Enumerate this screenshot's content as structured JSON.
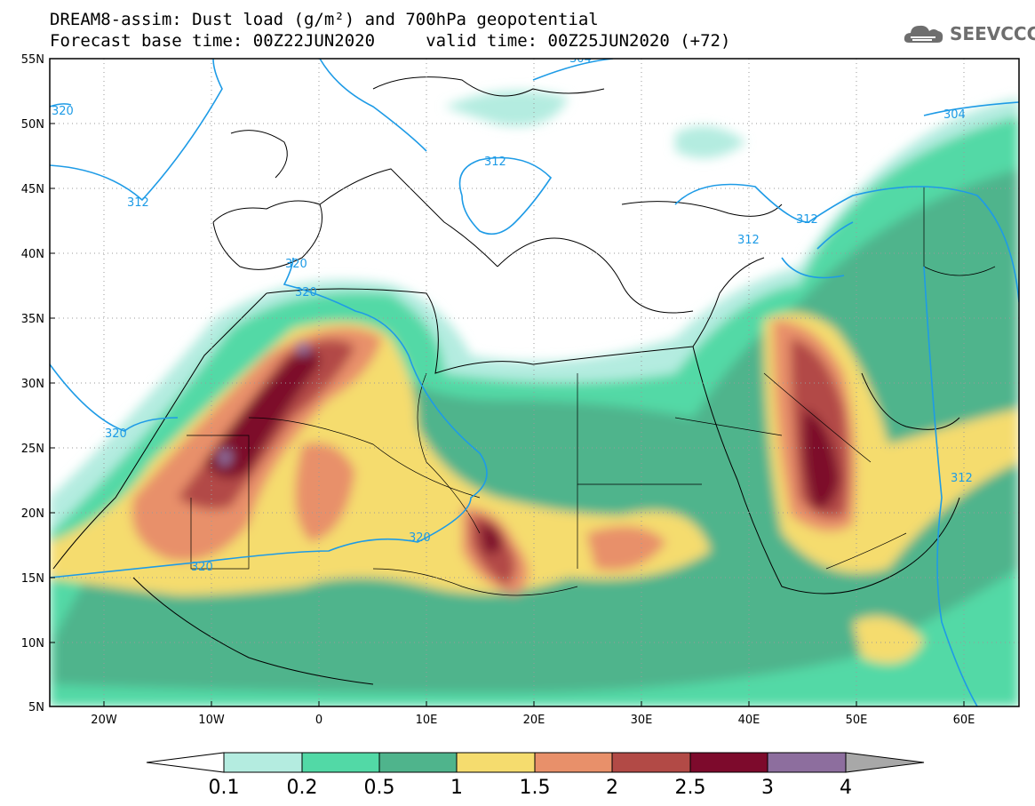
{
  "header": {
    "title_line1": "DREAM8-assim: Dust load (g/m²) and 700hPa geopotential",
    "title_line2": "Forecast base time: 00Z22JUN2020     valid time: 00Z25JUN2020 (+72)"
  },
  "logo": {
    "text": "SEEVCCC",
    "icon": "cloud-logo-icon"
  },
  "map": {
    "lon_range": [
      -25,
      65
    ],
    "lat_range": [
      5,
      55
    ],
    "lat_labels": [
      "55N",
      "50N",
      "45N",
      "40N",
      "35N",
      "30N",
      "25N",
      "20N",
      "15N",
      "10N",
      "5N"
    ],
    "lon_labels": [
      "20W",
      "10W",
      "0",
      "10E",
      "20E",
      "30E",
      "40E",
      "50E",
      "60E"
    ],
    "contour_labels": [
      "320",
      "312",
      "312",
      "304",
      "312",
      "312",
      "320",
      "320",
      "320",
      "320",
      "320",
      "320",
      "312",
      "304"
    ]
  },
  "colorbar": {
    "tick_labels": [
      "0.1",
      "0.2",
      "0.5",
      "1",
      "1.5",
      "2",
      "2.5",
      "3",
      "4"
    ],
    "colors": [
      "#ffffff",
      "#b4ece0",
      "#52d9a6",
      "#4fb48c",
      "#f5dc6e",
      "#e8906a",
      "#b24a46",
      "#7d0a2c",
      "#8d6e9e",
      "#a8a8a8"
    ]
  },
  "colors": {
    "contour": "#1e9be6",
    "coast": "#000000",
    "grid": "#9a9a9a"
  }
}
